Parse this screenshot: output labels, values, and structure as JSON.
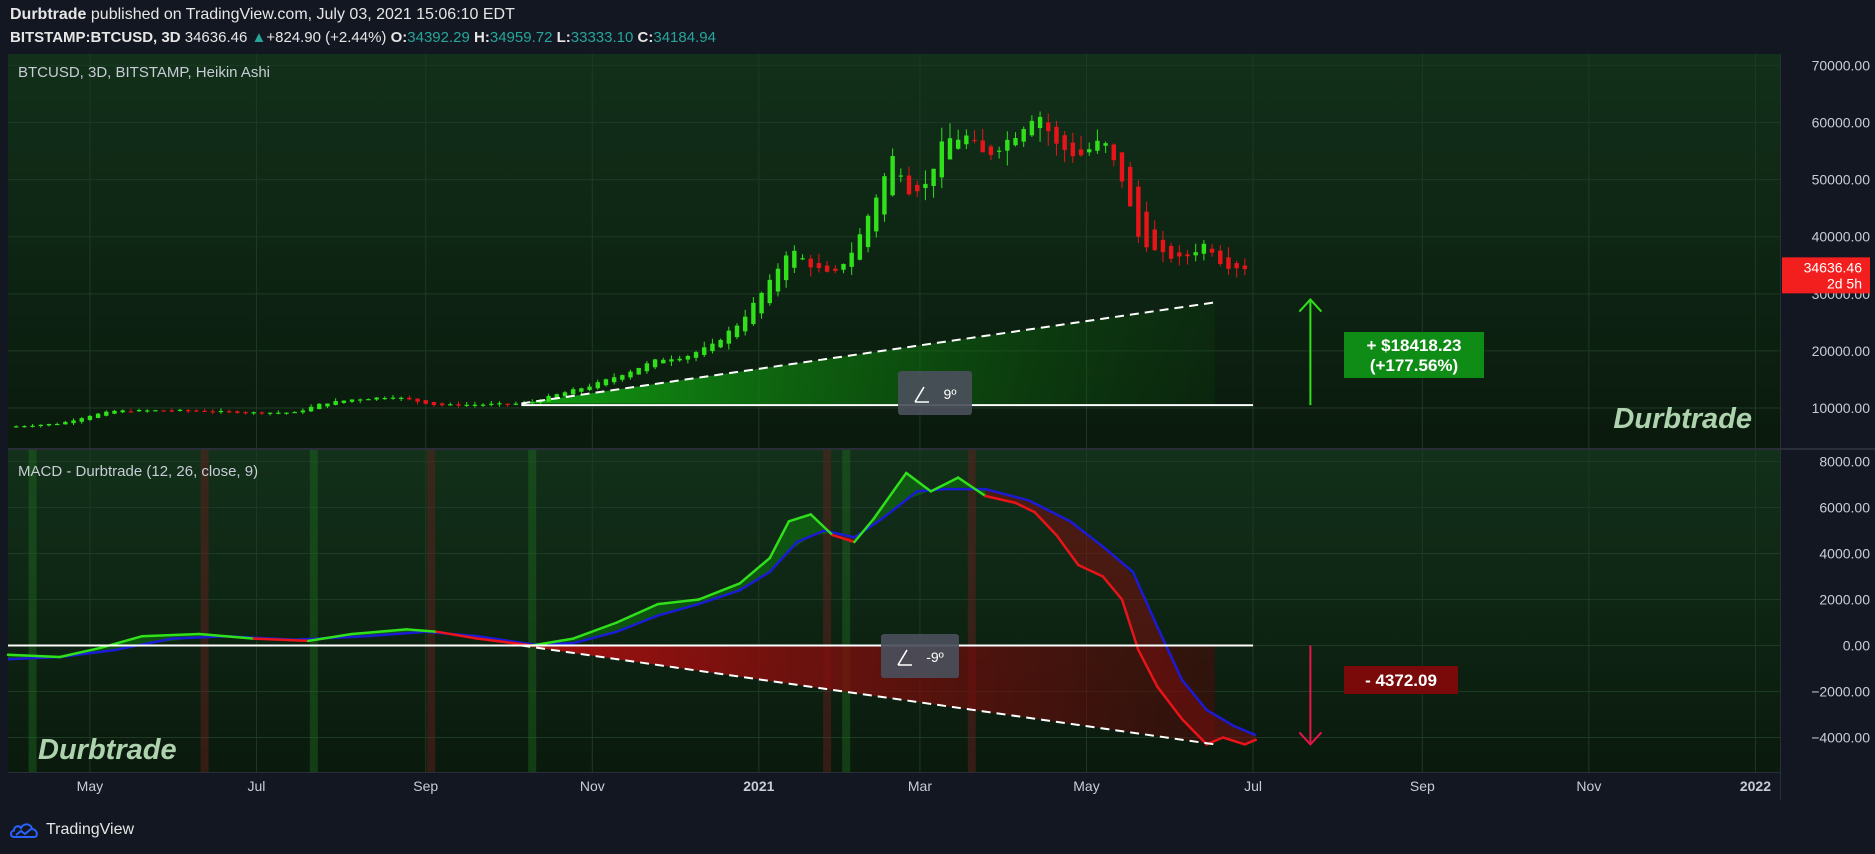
{
  "header": {
    "author": "Durbtrade",
    "published": "published on TradingView.com, July 03, 2021 15:06:10 EDT",
    "symbol": "BITSTAMP:BTCUSD, 3D",
    "last": "34636.46",
    "change_arrow": "▲",
    "change": "+824.90 (+2.44%)",
    "o_label": "O:",
    "o": "34392.29",
    "h_label": "H:",
    "h": "34959.72",
    "l_label": "L:",
    "l": "33333.10",
    "c_label": "C:",
    "c": "34184.94"
  },
  "footer": {
    "brand": "TradingView",
    "icon": "tradingview-cloud-icon"
  },
  "colors": {
    "up": "#2fe01b",
    "down": "#e8141a",
    "signal": "#1b1bd6",
    "bg": "#131722",
    "pane": "#0e2212",
    "price_tag": "#f31e1e",
    "gain_box": "#0f8c15",
    "loss_box": "#7a0a0a"
  },
  "chart_data": [
    {
      "type": "candlestick",
      "title": "BTCUSD, 3D, BITSTAMP, Heikin Ashi",
      "ylim": [
        3000,
        72000
      ],
      "y_ticks": [
        "70000.00",
        "60000.00",
        "50000.00",
        "40000.00",
        "30000.00",
        "20000.00",
        "10000.00"
      ],
      "y_tick_values": [
        70000,
        60000,
        50000,
        40000,
        30000,
        20000,
        10000
      ],
      "price_tag": "34636.46",
      "price_tag_value": 34636.46,
      "countdown": "2d 5h",
      "watermark": "Durbtrade",
      "close_path": [
        [
          "2020-04-01",
          6700
        ],
        [
          "2020-04-20",
          7300
        ],
        [
          "2020-05-01",
          8700
        ],
        [
          "2020-05-10",
          9500
        ],
        [
          "2020-05-31",
          9600
        ],
        [
          "2020-06-30",
          9200
        ],
        [
          "2020-07-15",
          9200
        ],
        [
          "2020-07-25",
          10800
        ],
        [
          "2020-08-05",
          11500
        ],
        [
          "2020-08-20",
          12000
        ],
        [
          "2020-09-05",
          10500
        ],
        [
          "2020-09-20",
          10600
        ],
        [
          "2020-10-08",
          10800
        ],
        [
          "2020-10-20",
          12500
        ],
        [
          "2020-11-01",
          14000
        ],
        [
          "2020-11-15",
          16500
        ],
        [
          "2020-11-25",
          18500
        ],
        [
          "2020-12-05",
          19000
        ],
        [
          "2020-12-15",
          21000
        ],
        [
          "2020-12-25",
          25000
        ],
        [
          "2021-01-05",
          32000
        ],
        [
          "2021-01-12",
          38000
        ],
        [
          "2021-01-20",
          35000
        ],
        [
          "2021-01-28",
          33000
        ],
        [
          "2021-02-05",
          38000
        ],
        [
          "2021-02-12",
          46000
        ],
        [
          "2021-02-20",
          55000
        ],
        [
          "2021-02-24",
          48000
        ],
        [
          "2021-03-03",
          49000
        ],
        [
          "2021-03-10",
          57000
        ],
        [
          "2021-03-18",
          57500
        ],
        [
          "2021-03-25",
          54000
        ],
        [
          "2021-04-05",
          58000
        ],
        [
          "2021-04-13",
          62000
        ],
        [
          "2021-04-20",
          56000
        ],
        [
          "2021-04-28",
          54000
        ],
        [
          "2021-05-07",
          57000
        ],
        [
          "2021-05-14",
          50000
        ],
        [
          "2021-05-20",
          40000
        ],
        [
          "2021-05-27",
          37000
        ],
        [
          "2021-06-05",
          36000
        ],
        [
          "2021-06-14",
          39000
        ],
        [
          "2021-06-20",
          35000
        ],
        [
          "2021-06-28",
          34600
        ]
      ],
      "trendline": {
        "from": [
          "2020-10-06",
          10800
        ],
        "to": [
          "2021-06-17",
          28500
        ]
      },
      "base_line": {
        "from": [
          "2020-10-06",
          10500
        ],
        "to": [
          "2021-07-01",
          10500
        ]
      },
      "angle_label": "9º",
      "gain_arrow": {
        "date": "2021-07-22",
        "from": 10500,
        "to": 29000
      },
      "gain_label_1": "+ $18418.23",
      "gain_label_2": "(+177.56%)"
    },
    {
      "type": "line",
      "title": "MACD - Durbtrade (12, 26, close, 9)",
      "ylim": [
        -5500,
        8500
      ],
      "y_ticks": [
        "8000.00",
        "6000.00",
        "4000.00",
        "2000.00",
        "0.00",
        "−2000.00",
        "−4000.00"
      ],
      "y_tick_values": [
        8000,
        6000,
        4000,
        2000,
        0,
        -2000,
        -4000
      ],
      "watermark": "Durbtrade",
      "series": [
        {
          "role": "macd",
          "points": [
            [
              "2020-04-01",
              -400
            ],
            [
              "2020-04-20",
              -500
            ],
            [
              "2020-05-05",
              -100
            ],
            [
              "2020-05-20",
              400
            ],
            [
              "2020-06-10",
              500
            ],
            [
              "2020-06-30",
              300
            ],
            [
              "2020-07-20",
              200
            ],
            [
              "2020-08-05",
              500
            ],
            [
              "2020-08-25",
              700
            ],
            [
              "2020-09-05",
              600
            ],
            [
              "2020-09-20",
              300
            ],
            [
              "2020-10-10",
              0
            ],
            [
              "2020-10-25",
              300
            ],
            [
              "2020-11-10",
              1000
            ],
            [
              "2020-11-25",
              1800
            ],
            [
              "2020-12-10",
              2000
            ],
            [
              "2020-12-25",
              2700
            ],
            [
              "2021-01-05",
              3800
            ],
            [
              "2021-01-12",
              5400
            ],
            [
              "2021-01-20",
              5700
            ],
            [
              "2021-01-28",
              4800
            ],
            [
              "2021-02-05",
              4500
            ],
            [
              "2021-02-12",
              5500
            ],
            [
              "2021-02-24",
              7500
            ],
            [
              "2021-03-05",
              6700
            ],
            [
              "2021-03-15",
              7300
            ],
            [
              "2021-03-25",
              6500
            ],
            [
              "2021-04-05",
              6200
            ],
            [
              "2021-04-12",
              5800
            ],
            [
              "2021-04-20",
              4800
            ],
            [
              "2021-04-28",
              3500
            ],
            [
              "2021-05-07",
              3000
            ],
            [
              "2021-05-14",
              2000
            ],
            [
              "2021-05-20",
              -200
            ],
            [
              "2021-05-27",
              -1800
            ],
            [
              "2021-06-05",
              -3200
            ],
            [
              "2021-06-14",
              -4300
            ],
            [
              "2021-06-20",
              -4000
            ],
            [
              "2021-06-28",
              -4300
            ],
            [
              "2021-07-02",
              -4100
            ]
          ]
        },
        {
          "role": "signal",
          "points": [
            [
              "2020-04-01",
              -600
            ],
            [
              "2020-04-20",
              -500
            ],
            [
              "2020-05-10",
              -200
            ],
            [
              "2020-05-31",
              300
            ],
            [
              "2020-06-20",
              400
            ],
            [
              "2020-07-15",
              250
            ],
            [
              "2020-08-10",
              400
            ],
            [
              "2020-09-01",
              600
            ],
            [
              "2020-09-20",
              400
            ],
            [
              "2020-10-10",
              50
            ],
            [
              "2020-10-25",
              100
            ],
            [
              "2020-11-10",
              600
            ],
            [
              "2020-11-25",
              1300
            ],
            [
              "2020-12-10",
              1800
            ],
            [
              "2020-12-25",
              2400
            ],
            [
              "2021-01-05",
              3200
            ],
            [
              "2021-01-15",
              4500
            ],
            [
              "2021-01-25",
              5000
            ],
            [
              "2021-02-05",
              4700
            ],
            [
              "2021-02-15",
              5500
            ],
            [
              "2021-02-28",
              6700
            ],
            [
              "2021-03-10",
              6800
            ],
            [
              "2021-03-25",
              6800
            ],
            [
              "2021-04-10",
              6300
            ],
            [
              "2021-04-25",
              5400
            ],
            [
              "2021-05-07",
              4300
            ],
            [
              "2021-05-18",
              3200
            ],
            [
              "2021-05-27",
              800
            ],
            [
              "2021-06-05",
              -1500
            ],
            [
              "2021-06-14",
              -2800
            ],
            [
              "2021-06-24",
              -3500
            ],
            [
              "2021-07-02",
              -3900
            ]
          ]
        }
      ],
      "trendline": {
        "from": [
          "2020-10-06",
          0
        ],
        "to": [
          "2021-06-17",
          -4300
        ]
      },
      "zero_line": {
        "from": [
          "2020-04-01",
          0
        ],
        "to": [
          "2021-07-01",
          0
        ]
      },
      "angle_label": "-9º",
      "loss_arrow": {
        "date": "2021-07-22",
        "from": 0,
        "to": -4300
      },
      "loss_label": "- 4372.09",
      "cross_bands": [
        {
          "date": "2020-04-10",
          "kind": "up"
        },
        {
          "date": "2020-06-12",
          "kind": "down"
        },
        {
          "date": "2020-07-22",
          "kind": "up"
        },
        {
          "date": "2020-09-03",
          "kind": "down"
        },
        {
          "date": "2020-10-10",
          "kind": "up"
        },
        {
          "date": "2021-01-26",
          "kind": "down"
        },
        {
          "date": "2021-02-02",
          "kind": "up"
        },
        {
          "date": "2021-03-20",
          "kind": "down"
        }
      ]
    }
  ],
  "x_axis": {
    "ticks": [
      {
        "label": "May",
        "date": "2020-05-01"
      },
      {
        "label": "Jul",
        "date": "2020-07-01"
      },
      {
        "label": "Sep",
        "date": "2020-09-01"
      },
      {
        "label": "Nov",
        "date": "2020-11-01"
      },
      {
        "label": "2021",
        "date": "2021-01-01"
      },
      {
        "label": "Mar",
        "date": "2021-03-01"
      },
      {
        "label": "May",
        "date": "2021-05-01"
      },
      {
        "label": "Jul",
        "date": "2021-07-01"
      },
      {
        "label": "Sep",
        "date": "2021-09-01"
      },
      {
        "label": "Nov",
        "date": "2021-11-01"
      },
      {
        "label": "2022",
        "date": "2022-01-01"
      }
    ],
    "range": [
      "2020-04-01",
      "2022-01-10"
    ]
  }
}
